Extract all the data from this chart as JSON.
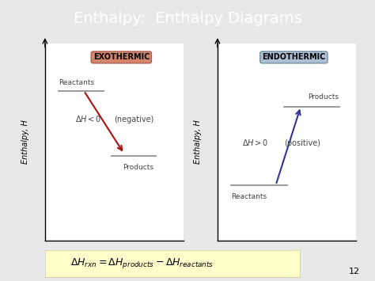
{
  "title": "Enthalpy:  Enthalpy Diagrams",
  "title_color": "white",
  "title_bg_color": "#1010a0",
  "slide_bg_color": "#e8e8e8",
  "footer_bg": "#ffffcc",
  "page_num": "12",
  "exo_label": "EXOTHERMIC",
  "exo_label_bg": "#d4856a",
  "exo_label_border": "#b06050",
  "exo_arrow_color": "#aa1111",
  "exo_ylabel": "Enthalpy, H",
  "endo_label": "ENDOTHERMIC",
  "endo_label_bg": "#adbfd4",
  "endo_label_border": "#7090a0",
  "endo_arrow_color": "#333399",
  "endo_ylabel": "Enthalpy, H",
  "line_color": "#888888",
  "text_color": "#444444"
}
